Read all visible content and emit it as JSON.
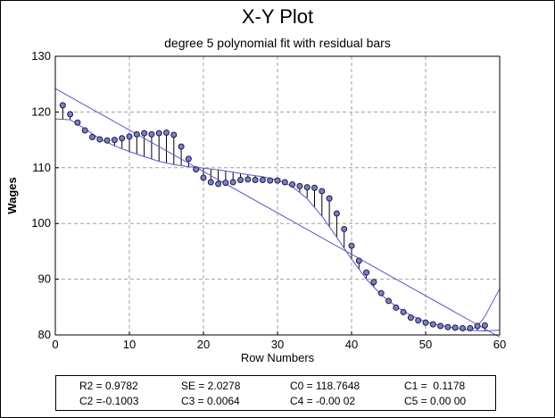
{
  "chart_data": {
    "type": "scatter",
    "title": "X-Y Plot",
    "subtitle": "degree 5 polynomial fit with residual bars",
    "xlabel": "Row Numbers",
    "ylabel": "Wages",
    "xlim": [
      0,
      60
    ],
    "ylim": [
      80,
      130
    ],
    "xticks": [
      0,
      10,
      20,
      30,
      40,
      50,
      60
    ],
    "yticks": [
      80,
      90,
      100,
      110,
      120,
      130
    ],
    "grid": true,
    "colors": {
      "points": "#7b7fc8",
      "fit": "#5858c8",
      "residual": "#000000"
    },
    "series": [
      {
        "type": "scatter-with-residuals",
        "x": [
          1,
          2,
          3,
          4,
          5,
          6,
          7,
          8,
          9,
          10,
          11,
          12,
          13,
          14,
          15,
          16,
          17,
          18,
          19,
          20,
          21,
          22,
          23,
          24,
          25,
          26,
          27,
          28,
          29,
          30,
          31,
          32,
          33,
          34,
          35,
          36,
          37,
          38,
          39,
          40,
          41,
          42,
          43,
          44,
          45,
          46,
          47,
          48,
          49,
          50,
          51,
          52,
          53,
          54,
          55,
          56,
          57,
          58
        ],
        "y": [
          121.2,
          119.6,
          118.1,
          116.7,
          115.5,
          115.1,
          114.9,
          115.0,
          115.3,
          115.6,
          116.0,
          116.2,
          116.0,
          116.2,
          116.3,
          115.9,
          113.8,
          111.6,
          109.7,
          108.2,
          107.4,
          107.1,
          107.3,
          107.4,
          107.8,
          107.9,
          107.8,
          107.8,
          107.7,
          107.7,
          107.4,
          107.0,
          106.7,
          106.5,
          106.4,
          105.8,
          104.5,
          101.8,
          99.0,
          96.0,
          93.3,
          91.2,
          89.5,
          87.5,
          86.1,
          84.9,
          84.1,
          83.1,
          82.6,
          82.2,
          81.9,
          81.6,
          81.4,
          81.3,
          81.2,
          81.2,
          81.6,
          81.7
        ]
      },
      {
        "type": "line",
        "x": [
          0,
          2,
          4,
          6,
          8,
          10,
          12,
          14,
          16,
          18,
          20,
          22,
          24,
          26,
          28,
          30,
          32,
          34,
          36,
          38,
          40,
          42,
          44,
          46,
          48,
          50,
          52,
          54,
          56,
          58,
          60
        ],
        "y": [
          118.76,
          118.6,
          116.98,
          115.2,
          113.93,
          112.91,
          111.98,
          111.16,
          110.57,
          110.2,
          109.93,
          109.63,
          109.22,
          108.77,
          108.38,
          107.82,
          106.63,
          104.47,
          101.3,
          97.53,
          93.6,
          90.01,
          87.21,
          85.1,
          83.51,
          82.36,
          81.7,
          81.22,
          80.84,
          80.7,
          80.86
        ]
      },
      {
        "type": "line",
        "x": [
          0,
          60
        ],
        "y": [
          124.2,
          79.6
        ]
      },
      {
        "type": "line",
        "x": [
          56,
          57,
          58,
          59,
          60
        ],
        "y": [
          80.84,
          81.6,
          83.3,
          85.8,
          88.3
        ]
      }
    ]
  },
  "stats": {
    "r2": "R2 = 0.9782",
    "se": "SE = 2.0278",
    "c0": "C0 = 118.7648",
    "c1": "C1 =  0.1178",
    "c2": "C2 =-0.1003",
    "c3": "C3 = 0.0064",
    "c4": "C4 = -0.00 02",
    "c5": "C5 = 0.00 00"
  }
}
